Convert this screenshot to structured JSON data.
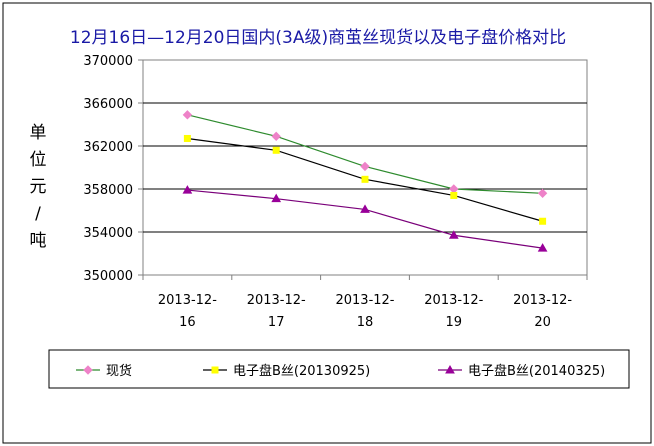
{
  "chart_data": {
    "type": "line",
    "title": "12月16日—12月20日国内(3A级)商茧丝现货以及电子盘价格对比",
    "ylabel": [
      "单",
      "位",
      "元",
      "/",
      "吨"
    ],
    "xlabel": "",
    "ylim": [
      350000,
      370000
    ],
    "yticks": [
      "370000",
      "366000",
      "362000",
      "358000",
      "354000",
      "350000"
    ],
    "ytick_values": [
      370000,
      366000,
      362000,
      358000,
      354000,
      350000
    ],
    "categories": [
      [
        "2013-12-",
        "16"
      ],
      [
        "2013-12-",
        "17"
      ],
      [
        "2013-12-",
        "18"
      ],
      [
        "2013-12-",
        "19"
      ],
      [
        "2013-12-",
        "20"
      ]
    ],
    "grid": true,
    "legend_position": "bottom",
    "series": [
      {
        "name": "现货",
        "values": [
          364900,
          362900,
          360100,
          358000,
          357600
        ],
        "line_color": "#2e8b2e",
        "marker_color": "#ee82c8",
        "marker": "diamond"
      },
      {
        "name": "电子盘B丝(20130925)",
        "values": [
          362700,
          361600,
          358900,
          357400,
          355000
        ],
        "line_color": "#000000",
        "marker_color": "#ffff00",
        "marker": "square"
      },
      {
        "name": "电子盘B丝(20140325)",
        "values": [
          357900,
          357100,
          356100,
          353700,
          352500
        ],
        "line_color": "#7a007a",
        "marker_color": "#990099",
        "marker": "triangle"
      }
    ]
  }
}
